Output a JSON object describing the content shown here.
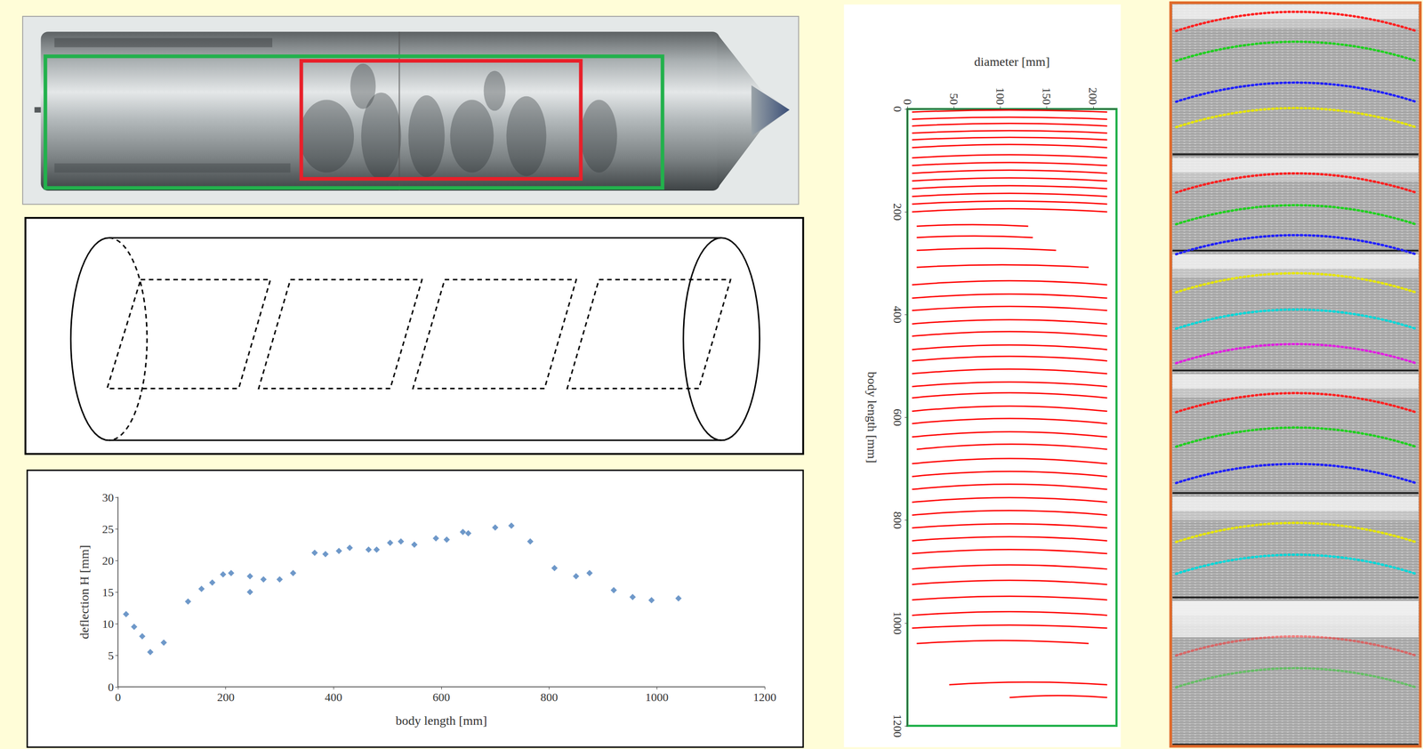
{
  "chart_data": [
    {
      "type": "scatter",
      "xlabel": "body length [mm]",
      "ylabel": "deflection H [mm]",
      "x": [
        15,
        30,
        45,
        60,
        85,
        130,
        155,
        175,
        195,
        210,
        245,
        245,
        270,
        300,
        325,
        365,
        385,
        410,
        430,
        465,
        480,
        505,
        525,
        550,
        590,
        610,
        640,
        650,
        700,
        730,
        765,
        810,
        850,
        875,
        920,
        955,
        990,
        1040
      ],
      "values": [
        11.5,
        9.5,
        8,
        5.5,
        7,
        13.5,
        15.5,
        16.5,
        17.8,
        18,
        15,
        17.5,
        17,
        17,
        18,
        21.2,
        21,
        21.5,
        22,
        21.7,
        21.7,
        22.8,
        23,
        22.5,
        23.5,
        23.3,
        24.5,
        24.3,
        25.2,
        25.5,
        23,
        18.8,
        17.5,
        18,
        15.3,
        14.2,
        13.7,
        14
      ],
      "xlim": [
        0,
        1200
      ],
      "xticks": [
        0,
        200,
        400,
        600,
        800,
        1000,
        1200
      ],
      "ylim": [
        0,
        30
      ],
      "yticks": [
        0,
        5,
        10,
        15,
        20,
        25,
        30
      ],
      "color": "#4a7ebb",
      "marker": "diamond",
      "grid": false
    },
    {
      "type": "line",
      "xlabel": "diameter [mm]",
      "ylabel": "body length [mm]",
      "xlim": [
        0,
        225
      ],
      "xticks": [
        0,
        50,
        100,
        150,
        200
      ],
      "ylim": [
        0,
        1200
      ],
      "yticks": [
        0,
        200,
        400,
        600,
        800,
        1000,
        1200
      ],
      "color": "#ff0000",
      "grid": false,
      "series": [
        {
          "x": [
            5,
            110,
            215
          ],
          "values": [
            6,
            2,
            6
          ]
        },
        {
          "x": [
            5,
            110,
            215
          ],
          "values": [
            20,
            16,
            20
          ]
        },
        {
          "x": [
            5,
            110,
            215
          ],
          "values": [
            33,
            28,
            33
          ]
        },
        {
          "x": [
            5,
            110,
            215
          ],
          "values": [
            47,
            42,
            47
          ]
        },
        {
          "x": [
            5,
            110,
            215
          ],
          "values": [
            60,
            55,
            60
          ]
        },
        {
          "x": [
            5,
            110,
            215
          ],
          "values": [
            75,
            69,
            75
          ]
        },
        {
          "x": [
            5,
            110,
            215
          ],
          "values": [
            95,
            89,
            95
          ]
        },
        {
          "x": [
            5,
            110,
            215
          ],
          "values": [
            110,
            104,
            110
          ]
        },
        {
          "x": [
            5,
            110,
            215
          ],
          "values": [
            125,
            119,
            125
          ]
        },
        {
          "x": [
            5,
            110,
            215
          ],
          "values": [
            140,
            134,
            140
          ]
        },
        {
          "x": [
            5,
            110,
            215
          ],
          "values": [
            155,
            149,
            155
          ]
        },
        {
          "x": [
            5,
            110,
            215
          ],
          "values": [
            170,
            164,
            170
          ]
        },
        {
          "x": [
            5,
            110,
            215
          ],
          "values": [
            185,
            179,
            185
          ]
        },
        {
          "x": [
            5,
            110,
            215
          ],
          "values": [
            200,
            194,
            200
          ]
        },
        {
          "x": [
            10,
            70,
            130
          ],
          "values": [
            228,
            225,
            228
          ]
        },
        {
          "x": [
            10,
            72,
            135
          ],
          "values": [
            250,
            247,
            250
          ]
        },
        {
          "x": [
            10,
            85,
            160
          ],
          "values": [
            275,
            271,
            275
          ]
        },
        {
          "x": [
            10,
            102,
            195
          ],
          "values": [
            308,
            303,
            308
          ]
        },
        {
          "x": [
            5,
            110,
            215
          ],
          "values": [
            342,
            334,
            342
          ]
        },
        {
          "x": [
            5,
            110,
            215
          ],
          "values": [
            368,
            360,
            368
          ]
        },
        {
          "x": [
            5,
            110,
            215
          ],
          "values": [
            392,
            384,
            392
          ]
        },
        {
          "x": [
            5,
            110,
            215
          ],
          "values": [
            418,
            410,
            418
          ]
        },
        {
          "x": [
            5,
            110,
            215
          ],
          "values": [
            442,
            433,
            442
          ]
        },
        {
          "x": [
            5,
            110,
            215
          ],
          "values": [
            468,
            459,
            468
          ]
        },
        {
          "x": [
            5,
            110,
            215
          ],
          "values": [
            490,
            481,
            490
          ]
        },
        {
          "x": [
            5,
            110,
            215
          ],
          "values": [
            515,
            506,
            515
          ]
        },
        {
          "x": [
            5,
            110,
            215
          ],
          "values": [
            540,
            531,
            540
          ]
        },
        {
          "x": [
            5,
            110,
            215
          ],
          "values": [
            562,
            552,
            562
          ]
        },
        {
          "x": [
            5,
            110,
            215
          ],
          "values": [
            588,
            578,
            588
          ]
        },
        {
          "x": [
            5,
            110,
            215
          ],
          "values": [
            612,
            602,
            612
          ]
        },
        {
          "x": [
            5,
            110,
            215
          ],
          "values": [
            638,
            628,
            638
          ]
        },
        {
          "x": [
            10,
            112,
            215
          ],
          "values": [
            662,
            652,
            662
          ]
        },
        {
          "x": [
            5,
            110,
            215
          ],
          "values": [
            690,
            680,
            690
          ]
        },
        {
          "x": [
            5,
            110,
            215
          ],
          "values": [
            715,
            705,
            715
          ]
        },
        {
          "x": [
            5,
            110,
            215
          ],
          "values": [
            740,
            730,
            740
          ]
        },
        {
          "x": [
            5,
            110,
            215
          ],
          "values": [
            765,
            756,
            765
          ]
        },
        {
          "x": [
            5,
            110,
            215
          ],
          "values": [
            790,
            781,
            790
          ]
        },
        {
          "x": [
            5,
            110,
            215
          ],
          "values": [
            815,
            807,
            815
          ]
        },
        {
          "x": [
            5,
            110,
            215
          ],
          "values": [
            840,
            832,
            840
          ]
        },
        {
          "x": [
            5,
            110,
            215
          ],
          "values": [
            865,
            857,
            865
          ]
        },
        {
          "x": [
            5,
            110,
            215
          ],
          "values": [
            895,
            887,
            895
          ]
        },
        {
          "x": [
            5,
            110,
            215
          ],
          "values": [
            925,
            917,
            925
          ]
        },
        {
          "x": [
            5,
            110,
            215
          ],
          "values": [
            955,
            948,
            955
          ]
        },
        {
          "x": [
            5,
            110,
            215
          ],
          "values": [
            985,
            978,
            985
          ]
        },
        {
          "x": [
            5,
            110,
            215
          ],
          "values": [
            1010,
            1004,
            1010
          ]
        },
        {
          "x": [
            10,
            102,
            195
          ],
          "values": [
            1040,
            1034,
            1040
          ]
        },
        {
          "x": [
            45,
            130,
            215
          ],
          "values": [
            1120,
            1115,
            1120
          ]
        },
        {
          "x": [
            110,
            162,
            215
          ],
          "values": [
            1145,
            1141,
            1145
          ]
        }
      ]
    }
  ]
}
